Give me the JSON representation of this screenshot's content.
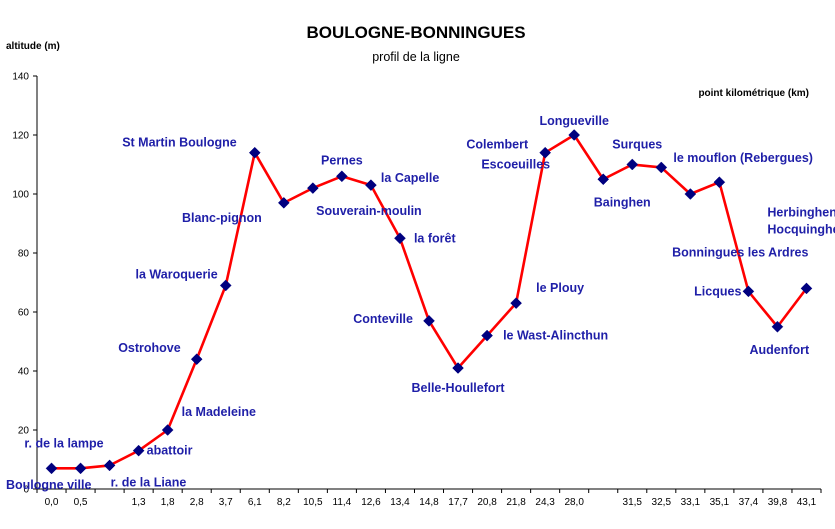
{
  "chart_data": {
    "type": "line",
    "title": "BOULOGNE-BONNINGUES",
    "subtitle": "profil de la ligne",
    "ylabel": "altitude (m)",
    "xlabel": "point kilométrique (km)",
    "ylim": [
      0,
      140
    ],
    "yticks": [
      0,
      20,
      40,
      60,
      80,
      100,
      120,
      140
    ],
    "grid": false,
    "x_tick_labels": [
      "0,0",
      "0,5",
      "",
      "1,3",
      "1,8",
      "2,8",
      "3,7",
      "6,1",
      "8,2",
      "10,5",
      "11,4",
      "12,6",
      "13,4",
      "14,8",
      "17,7",
      "20,8",
      "21,8",
      "24,3",
      "28,0",
      "",
      "31,5",
      "32,5",
      "33,1",
      "35,1",
      "37,4",
      "39,8",
      "43,1"
    ],
    "series": [
      {
        "color": "#ff0000",
        "marker_color": "#00007f",
        "points": [
          {
            "km": "0,0",
            "altitude": 7,
            "label": "Boulogne ville"
          },
          {
            "km": "0,5",
            "altitude": 7,
            "label": ""
          },
          {
            "km": "",
            "altitude": 8,
            "label": "r. de la lampe"
          },
          {
            "km": "1,3",
            "altitude": 13,
            "label": "abattoir"
          },
          {
            "km": "1,8",
            "altitude": 20,
            "label": "la Madeleine"
          },
          {
            "km": "2,8",
            "altitude": 44,
            "label": "Ostrohove"
          },
          {
            "km": "3,7",
            "altitude": 69,
            "label": "la Waroquerie"
          },
          {
            "km": "6,1",
            "altitude": 114,
            "label": "St Martin Boulogne"
          },
          {
            "km": "8,2",
            "altitude": 97,
            "label": "Blanc-pignon"
          },
          {
            "km": "10,5",
            "altitude": 102,
            "label": ""
          },
          {
            "km": "11,4",
            "altitude": 106,
            "label": "Pernes"
          },
          {
            "km": "12,6",
            "altitude": 103,
            "label": "la Capelle"
          },
          {
            "km": "13,4",
            "altitude": 85,
            "label": "la forêt"
          },
          {
            "km": "14,8",
            "altitude": 57,
            "label": "Conteville"
          },
          {
            "km": "17,7",
            "altitude": 41,
            "label": "Belle-Houllefort"
          },
          {
            "km": "20,8",
            "altitude": 52,
            "label": "le Wast-Alincthun"
          },
          {
            "km": "21,8",
            "altitude": 63,
            "label": "le Plouy"
          },
          {
            "km": "24,3",
            "altitude": 114,
            "label": "Colembert"
          },
          {
            "km": "28,0",
            "altitude": 120,
            "label": "Longueville"
          },
          {
            "km": "",
            "altitude": 105,
            "label": "Bainghen"
          },
          {
            "km": "31,5",
            "altitude": 110,
            "label": "Surques"
          },
          {
            "km": "32,5",
            "altitude": 109,
            "label": ""
          },
          {
            "km": "33,1",
            "altitude": 100,
            "label": ""
          },
          {
            "km": "35,1",
            "altitude": 104,
            "label": "le mouflon (Rebergues)"
          },
          {
            "km": "37,4",
            "altitude": 67,
            "label": "Licques"
          },
          {
            "km": "39,8",
            "altitude": 55,
            "label": "Audenfort"
          },
          {
            "km": "43,1",
            "altitude": 68,
            "label": "Bonningues les Ardres"
          }
        ]
      }
    ],
    "extra_labels": [
      "Souverain-moulin",
      "Escoeuilles",
      "Herbinghen-",
      "Hocquinghen",
      "r. de la Liane"
    ]
  }
}
